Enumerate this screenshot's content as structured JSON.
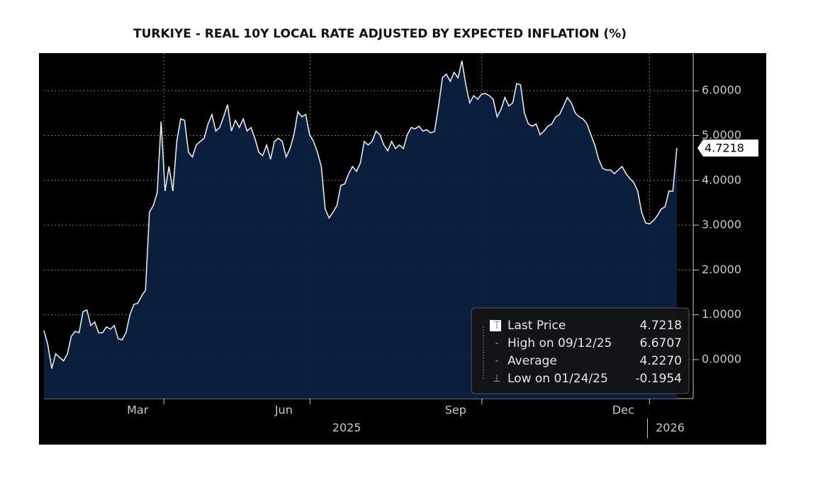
{
  "chart_data": {
    "type": "area",
    "title": "TURKIYE - REAL 10Y LOCAL RATE ADJUSTED BY EXPECTED INFLATION (%)",
    "values": [
      0.65,
      0.33,
      -0.2,
      0.13,
      0.05,
      -0.03,
      0.13,
      0.52,
      0.63,
      0.6,
      1.07,
      1.11,
      0.76,
      0.84,
      0.6,
      0.6,
      0.73,
      0.68,
      0.76,
      0.47,
      0.44,
      0.6,
      1.0,
      1.23,
      1.26,
      1.42,
      1.55,
      3.29,
      3.44,
      3.73,
      5.31,
      3.76,
      4.31,
      3.76,
      4.87,
      5.37,
      5.34,
      4.63,
      4.52,
      4.79,
      4.87,
      4.94,
      5.26,
      5.47,
      5.1,
      5.18,
      5.42,
      5.69,
      5.1,
      5.34,
      5.18,
      5.37,
      5.1,
      5.18,
      4.94,
      4.63,
      4.55,
      4.79,
      4.47,
      4.87,
      4.94,
      4.87,
      4.52,
      4.71,
      5.02,
      5.53,
      5.42,
      5.47,
      5.02,
      4.87,
      4.63,
      4.31,
      3.36,
      3.16,
      3.29,
      3.44,
      3.89,
      3.92,
      4.15,
      4.31,
      4.2,
      4.39,
      4.87,
      4.79,
      4.87,
      5.1,
      5.02,
      4.79,
      4.66,
      4.87,
      4.71,
      4.79,
      4.71,
      5.02,
      5.18,
      5.15,
      5.21,
      5.1,
      5.13,
      5.06,
      5.09,
      5.66,
      6.29,
      6.37,
      6.21,
      6.41,
      6.29,
      6.67,
      6.13,
      5.73,
      5.89,
      5.81,
      5.92,
      5.94,
      5.89,
      5.81,
      5.42,
      5.58,
      5.85,
      5.66,
      5.73,
      6.16,
      6.13,
      5.5,
      5.26,
      5.21,
      5.26,
      5.02,
      5.1,
      5.21,
      5.26,
      5.42,
      5.47,
      5.66,
      5.85,
      5.73,
      5.5,
      5.42,
      5.37,
      5.26,
      5.02,
      4.79,
      4.47,
      4.27,
      4.23,
      4.23,
      4.15,
      4.23,
      4.31,
      4.15,
      4.04,
      3.95,
      3.76,
      3.29,
      3.05,
      3.03,
      3.1,
      3.21,
      3.36,
      3.41,
      3.76,
      3.76,
      4.7218
    ],
    "color": "#0c2140",
    "line_color": "#e4e8ee",
    "xlim": [
      0,
      166.2
    ],
    "xticks": [
      {
        "value": 30.7,
        "label": "Mar"
      },
      {
        "value": 68.1,
        "label": "Jun"
      },
      {
        "value": 112.1,
        "label": "Sep"
      },
      {
        "value": 155,
        "label": "Dec"
      }
    ],
    "year_labels": [
      {
        "value": 77.5,
        "label": "2025"
      },
      {
        "value": 160.3,
        "label": "2026"
      }
    ],
    "ylim": [
      -0.87,
      6.84
    ],
    "yticks": [
      {
        "value": 0,
        "label": "0.0000"
      },
      {
        "value": 1,
        "label": "1.0000"
      },
      {
        "value": 2,
        "label": "2.0000"
      },
      {
        "value": 3,
        "label": "3.0000"
      },
      {
        "value": 4,
        "label": "4.0000"
      },
      {
        "value": 5,
        "label": "5.0000"
      },
      {
        "value": 6,
        "label": "6.0000"
      }
    ],
    "grid": true,
    "legend": {
      "position": "lower right",
      "rows": [
        {
          "label": "Last Price",
          "value": "4.7218"
        },
        {
          "label": "High on 09/12/25",
          "value": "6.6707"
        },
        {
          "label": "Average",
          "value": "4.2270"
        },
        {
          "label": "Low on 01/24/25",
          "value": "-0.1954"
        }
      ]
    }
  }
}
